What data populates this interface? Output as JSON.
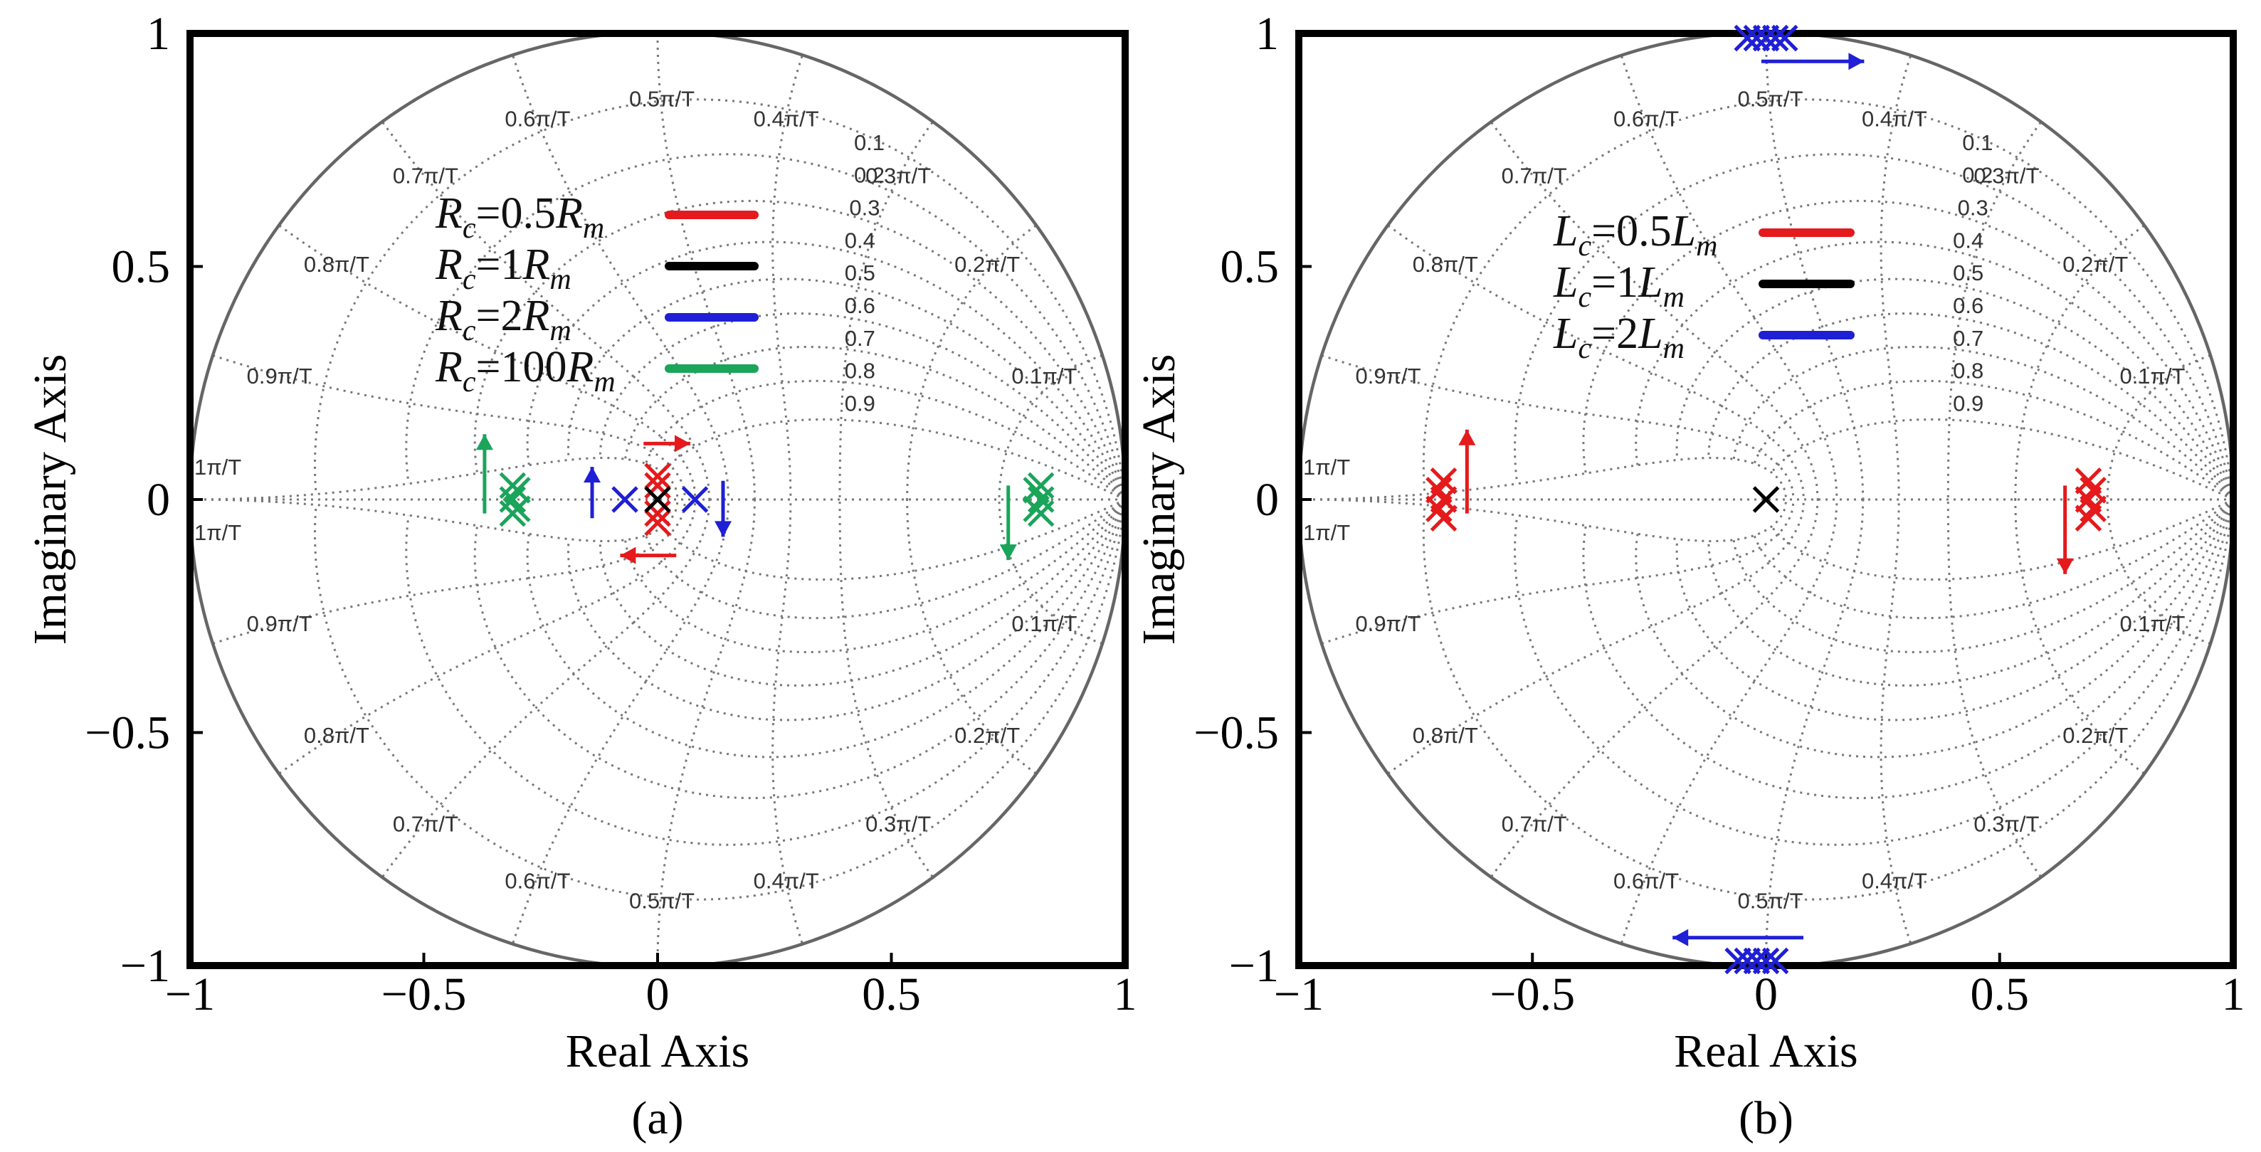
{
  "chart_data": [
    {
      "type": "scatter",
      "subtype": "pole-zero map (z-plane root locus)",
      "panel_label": "(a)",
      "xlabel": "Real Axis",
      "ylabel": "Imaginary Axis",
      "xlim": [
        -1,
        1
      ],
      "ylim": [
        -1,
        1
      ],
      "x_ticks": [
        "−1",
        "−0.5",
        "0",
        "0.5",
        "1"
      ],
      "y_ticks": [
        "1",
        "0.5",
        "0",
        "−0.5",
        "−1"
      ],
      "damping_labels": [
        "0.1",
        "0.2",
        "0.3",
        "0.4",
        "0.5",
        "0.6",
        "0.7",
        "0.8",
        "0.9"
      ],
      "freq_labels_top": [
        "0.1π/T",
        "0.2π/T",
        "0.3π/T",
        "0.4π/T",
        "0.5π/T",
        "0.6π/T",
        "0.7π/T",
        "0.8π/T",
        "0.9π/T",
        "1π/T"
      ],
      "freq_labels_bottom": [
        "0.1π/T",
        "0.2π/T",
        "0.3π/T",
        "0.4π/T",
        "0.5π/T",
        "0.6π/T",
        "0.7π/T",
        "0.8π/T",
        "0.9π/T",
        "1π/T"
      ],
      "legend": [
        {
          "label": "Rc=0.5Rm",
          "color": "#e41a1c"
        },
        {
          "label": "Rc=1Rm",
          "color": "#000000"
        },
        {
          "label": "Rc=2Rm",
          "color": "#1f1fd6"
        },
        {
          "label": "Rc=100Rm",
          "color": "#1aa55a"
        }
      ],
      "series": [
        {
          "name": "Rc=0.5Rm",
          "color": "#e41a1c",
          "points": [
            [
              0,
              0.05
            ],
            [
              0,
              -0.05
            ],
            [
              0,
              0.03
            ],
            [
              0,
              -0.03
            ]
          ]
        },
        {
          "name": "Rc=1Rm",
          "color": "#000000",
          "points": [
            [
              0,
              0
            ]
          ]
        },
        {
          "name": "Rc=2Rm",
          "color": "#1f1fd6",
          "points": [
            [
              -0.07,
              0
            ],
            [
              0.08,
              0
            ]
          ]
        },
        {
          "name": "Rc=100Rm",
          "color": "#1aa55a",
          "points": [
            [
              -0.31,
              0.03
            ],
            [
              -0.31,
              0.0
            ],
            [
              -0.31,
              -0.03
            ],
            [
              -0.3,
              0.02
            ],
            [
              -0.3,
              -0.02
            ],
            [
              0.82,
              0.03
            ],
            [
              0.82,
              0.0
            ],
            [
              0.82,
              -0.03
            ],
            [
              0.81,
              0.02
            ],
            [
              0.81,
              -0.02
            ]
          ]
        }
      ],
      "arrows": [
        {
          "color": "#e41a1c",
          "from": [
            -0.03,
            0.12
          ],
          "to": [
            0.07,
            0.12
          ]
        },
        {
          "color": "#e41a1c",
          "from": [
            0.04,
            -0.12
          ],
          "to": [
            -0.08,
            -0.12
          ]
        },
        {
          "color": "#1f1fd6",
          "from": [
            -0.14,
            -0.04
          ],
          "to": [
            -0.14,
            0.07
          ]
        },
        {
          "color": "#1f1fd6",
          "from": [
            0.14,
            0.04
          ],
          "to": [
            0.14,
            -0.08
          ]
        },
        {
          "color": "#1aa55a",
          "from": [
            -0.37,
            -0.03
          ],
          "to": [
            -0.37,
            0.14
          ]
        },
        {
          "color": "#1aa55a",
          "from": [
            0.75,
            0.03
          ],
          "to": [
            0.75,
            -0.13
          ]
        }
      ]
    },
    {
      "type": "scatter",
      "subtype": "pole-zero map (z-plane root locus)",
      "panel_label": "(b)",
      "xlabel": "Real Axis",
      "ylabel": "Imaginary Axis",
      "xlim": [
        -1,
        1
      ],
      "ylim": [
        -1,
        1
      ],
      "x_ticks": [
        "−1",
        "−0.5",
        "0",
        "0.5",
        "1"
      ],
      "y_ticks": [
        "1",
        "0.5",
        "0",
        "−0.5",
        "−1"
      ],
      "damping_labels": [
        "0.1",
        "0.2",
        "0.3",
        "0.4",
        "0.5",
        "0.6",
        "0.7",
        "0.8",
        "0.9"
      ],
      "freq_labels_top": [
        "0.1π/T",
        "0.2π/T",
        "0.3π/T",
        "0.4π/T",
        "0.5π/T",
        "0.6π/T",
        "0.7π/T",
        "0.8π/T",
        "0.9π/T",
        "1π/T"
      ],
      "freq_labels_bottom": [
        "0.1π/T",
        "0.2π/T",
        "0.3π/T",
        "0.4π/T",
        "0.5π/T",
        "0.6π/T",
        "0.7π/T",
        "0.8π/T",
        "0.9π/T",
        "1π/T"
      ],
      "legend": [
        {
          "label": "Lc=0.5Lm",
          "color": "#e41a1c"
        },
        {
          "label": "Lc=1Lm",
          "color": "#000000"
        },
        {
          "label": "Lc=2Lm",
          "color": "#1f1fd6"
        }
      ],
      "series": [
        {
          "name": "Lc=0.5Lm",
          "color": "#e41a1c",
          "points": [
            [
              -0.69,
              0.04
            ],
            [
              -0.69,
              0.0
            ],
            [
              -0.69,
              -0.04
            ],
            [
              -0.7,
              0.02
            ],
            [
              -0.7,
              -0.02
            ],
            [
              0.69,
              0.04
            ],
            [
              0.69,
              0.0
            ],
            [
              0.69,
              -0.04
            ],
            [
              0.7,
              0.02
            ],
            [
              0.7,
              -0.02
            ]
          ]
        },
        {
          "name": "Lc=1Lm",
          "color": "#000000",
          "points": [
            [
              0,
              0
            ]
          ]
        },
        {
          "name": "Lc=2Lm",
          "color": "#1f1fd6",
          "points": [
            [
              -0.02,
              0.99
            ],
            [
              0.0,
              0.99
            ],
            [
              0.02,
              0.99
            ],
            [
              0.04,
              0.99
            ],
            [
              -0.04,
              0.99
            ],
            [
              -0.02,
              -0.99
            ],
            [
              0.0,
              -0.99
            ],
            [
              0.02,
              -0.99
            ],
            [
              -0.04,
              -0.99
            ],
            [
              -0.06,
              -0.99
            ]
          ]
        }
      ],
      "arrows": [
        {
          "color": "#e41a1c",
          "from": [
            -0.64,
            -0.03
          ],
          "to": [
            -0.64,
            0.15
          ]
        },
        {
          "color": "#e41a1c",
          "from": [
            0.64,
            0.03
          ],
          "to": [
            0.64,
            -0.16
          ]
        },
        {
          "color": "#1f1fd6",
          "from": [
            -0.01,
            0.94
          ],
          "to": [
            0.21,
            0.94
          ]
        },
        {
          "color": "#1f1fd6",
          "from": [
            0.08,
            -0.94
          ],
          "to": [
            -0.2,
            -0.94
          ]
        }
      ]
    }
  ]
}
